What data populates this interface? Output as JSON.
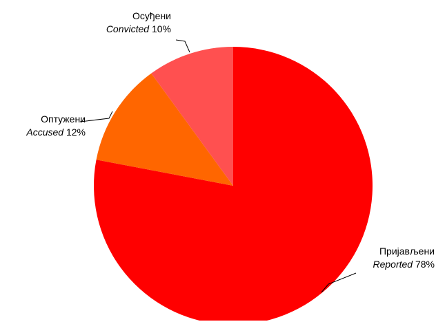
{
  "chart_data": {
    "type": "pie",
    "slices": [
      {
        "label_sr": "Пријављени",
        "label_en": "Reported",
        "value": 78,
        "value_label": "78%",
        "color": "#ff0000"
      },
      {
        "label_sr": "Оптужени",
        "label_en": "Accused",
        "value": 12,
        "value_label": "12%",
        "color": "#ff6600"
      },
      {
        "label_sr": "Осуђени",
        "label_en": "Convicted",
        "value": 10,
        "value_label": "10%",
        "color": "#ff5050"
      }
    ],
    "start_position": "12 o'clock",
    "direction": "clockwise",
    "legend": "none",
    "labels": "outside with leader lines"
  }
}
